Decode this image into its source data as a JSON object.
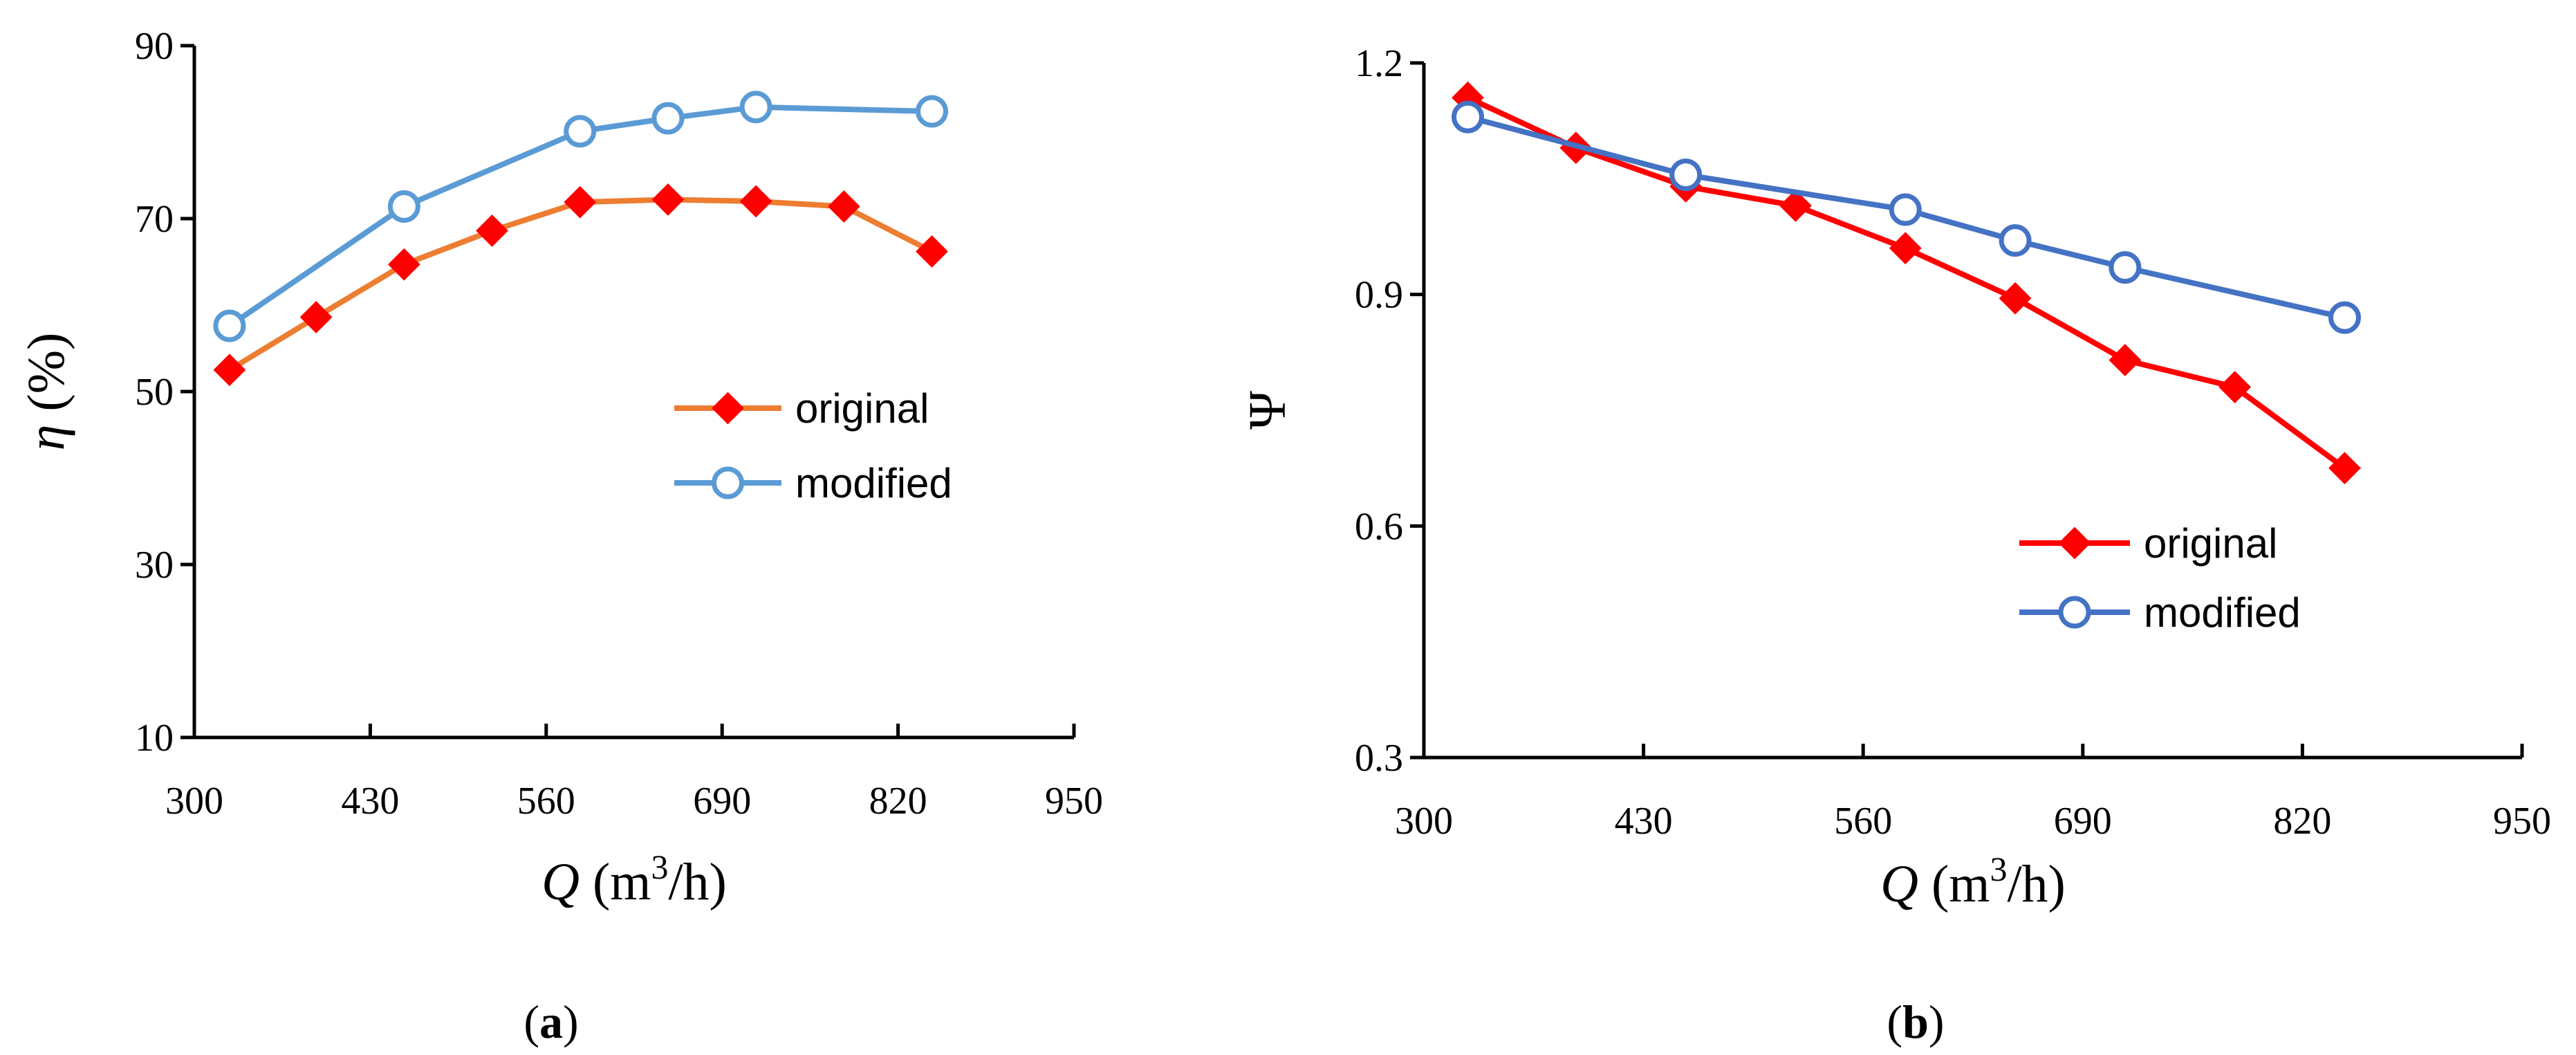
{
  "chart_data": [
    {
      "type": "line",
      "panel": "a",
      "xlabel": "Q (m3/h)",
      "xlabel_var": "Q",
      "xlabel_unit_pre": "(m",
      "xlabel_unit_sup": "3",
      "xlabel_unit_post": "/h)",
      "ylabel": "η (%)",
      "ylabel_var": "η",
      "ylabel_unit": "(%)",
      "xlim": [
        300,
        950
      ],
      "ylim": [
        10,
        90
      ],
      "xticks": [
        300,
        430,
        560,
        690,
        820,
        950
      ],
      "yticks": [
        10,
        30,
        50,
        70,
        90
      ],
      "legend_position": "center-right",
      "series": [
        {
          "name": "original",
          "color": "#ED7D31",
          "marker": "diamond",
          "marker_color": "#FF0000",
          "x": [
            326,
            390,
            455,
            520,
            585,
            650,
            715,
            780,
            845
          ],
          "y": [
            52.5,
            58.6,
            64.7,
            68.6,
            71.9,
            72.2,
            72.0,
            71.4,
            66.2
          ]
        },
        {
          "name": "modified",
          "color": "#5B9BD5",
          "marker": "circle-open",
          "marker_color": "#5B9BD5",
          "x": [
            326,
            455,
            585,
            650,
            715,
            845
          ],
          "y": [
            57.6,
            71.4,
            80.1,
            81.6,
            82.9,
            82.4
          ]
        }
      ],
      "caption": "a"
    },
    {
      "type": "line",
      "panel": "b",
      "xlabel": "Q (m3/h)",
      "xlabel_var": "Q",
      "xlabel_unit_pre": "(m",
      "xlabel_unit_sup": "3",
      "xlabel_unit_post": "/h)",
      "ylabel": "Ψ",
      "xlim": [
        300,
        950
      ],
      "ylim": [
        0.3,
        1.2
      ],
      "xticks": [
        300,
        430,
        560,
        690,
        820,
        950
      ],
      "yticks": [
        "0.3",
        "0.6",
        "0.9",
        "1.2"
      ],
      "legend_position": "lower-right",
      "series": [
        {
          "name": "original",
          "color": "#FF0000",
          "marker": "diamond",
          "marker_color": "#FF0000",
          "x": [
            326,
            390,
            455,
            520,
            585,
            650,
            715,
            780,
            845
          ],
          "y": [
            1.155,
            1.09,
            1.04,
            1.015,
            0.96,
            0.895,
            0.815,
            0.78,
            0.675
          ]
        },
        {
          "name": "modified",
          "color": "#4472C4",
          "marker": "circle-open",
          "marker_color": "#4472C4",
          "x": [
            326,
            455,
            585,
            650,
            715,
            845
          ],
          "y": [
            1.13,
            1.055,
            1.01,
            0.97,
            0.935,
            0.87
          ]
        }
      ],
      "caption": "b"
    }
  ]
}
